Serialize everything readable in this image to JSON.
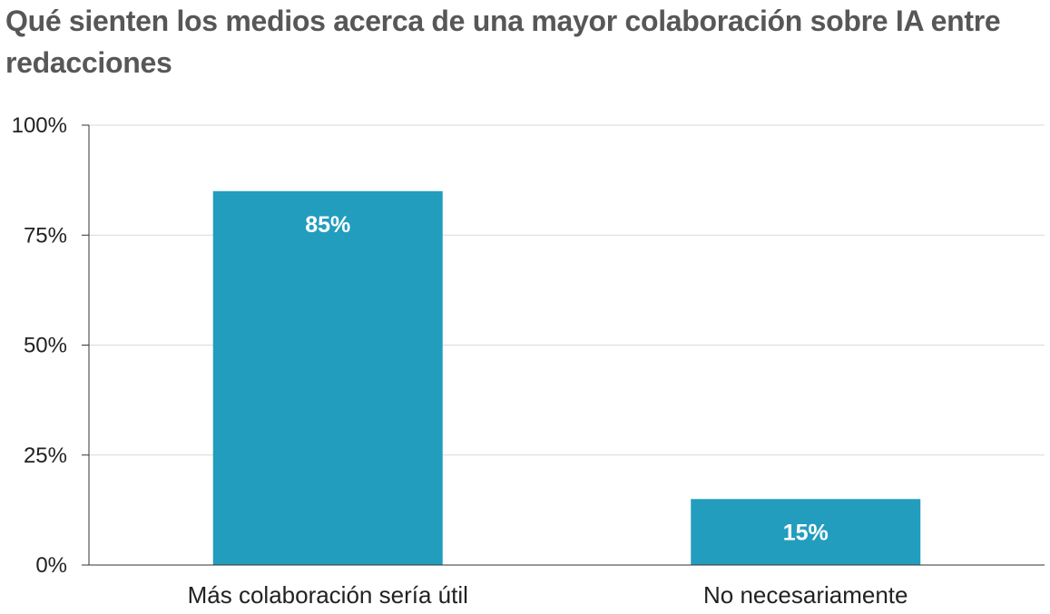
{
  "chart_data": {
    "type": "bar",
    "title": "Qué sienten los medios acerca de una mayor colaboración sobre IA entre redacciones",
    "categories": [
      "Más colaboración sería útil",
      "No necesariamente"
    ],
    "values": [
      85,
      15
    ],
    "data_labels": [
      "85%",
      "15%"
    ],
    "xlabel": "",
    "ylabel": "",
    "ylim": [
      0,
      100
    ],
    "yticks": [
      0,
      25,
      50,
      75,
      100
    ],
    "ytick_labels": [
      "0%",
      "25%",
      "50%",
      "75%",
      "100%"
    ],
    "grid": true,
    "legend": "none",
    "bar_color": "#229dbe",
    "grid_color": "#d9d9d9",
    "axis_color": "#333333"
  }
}
